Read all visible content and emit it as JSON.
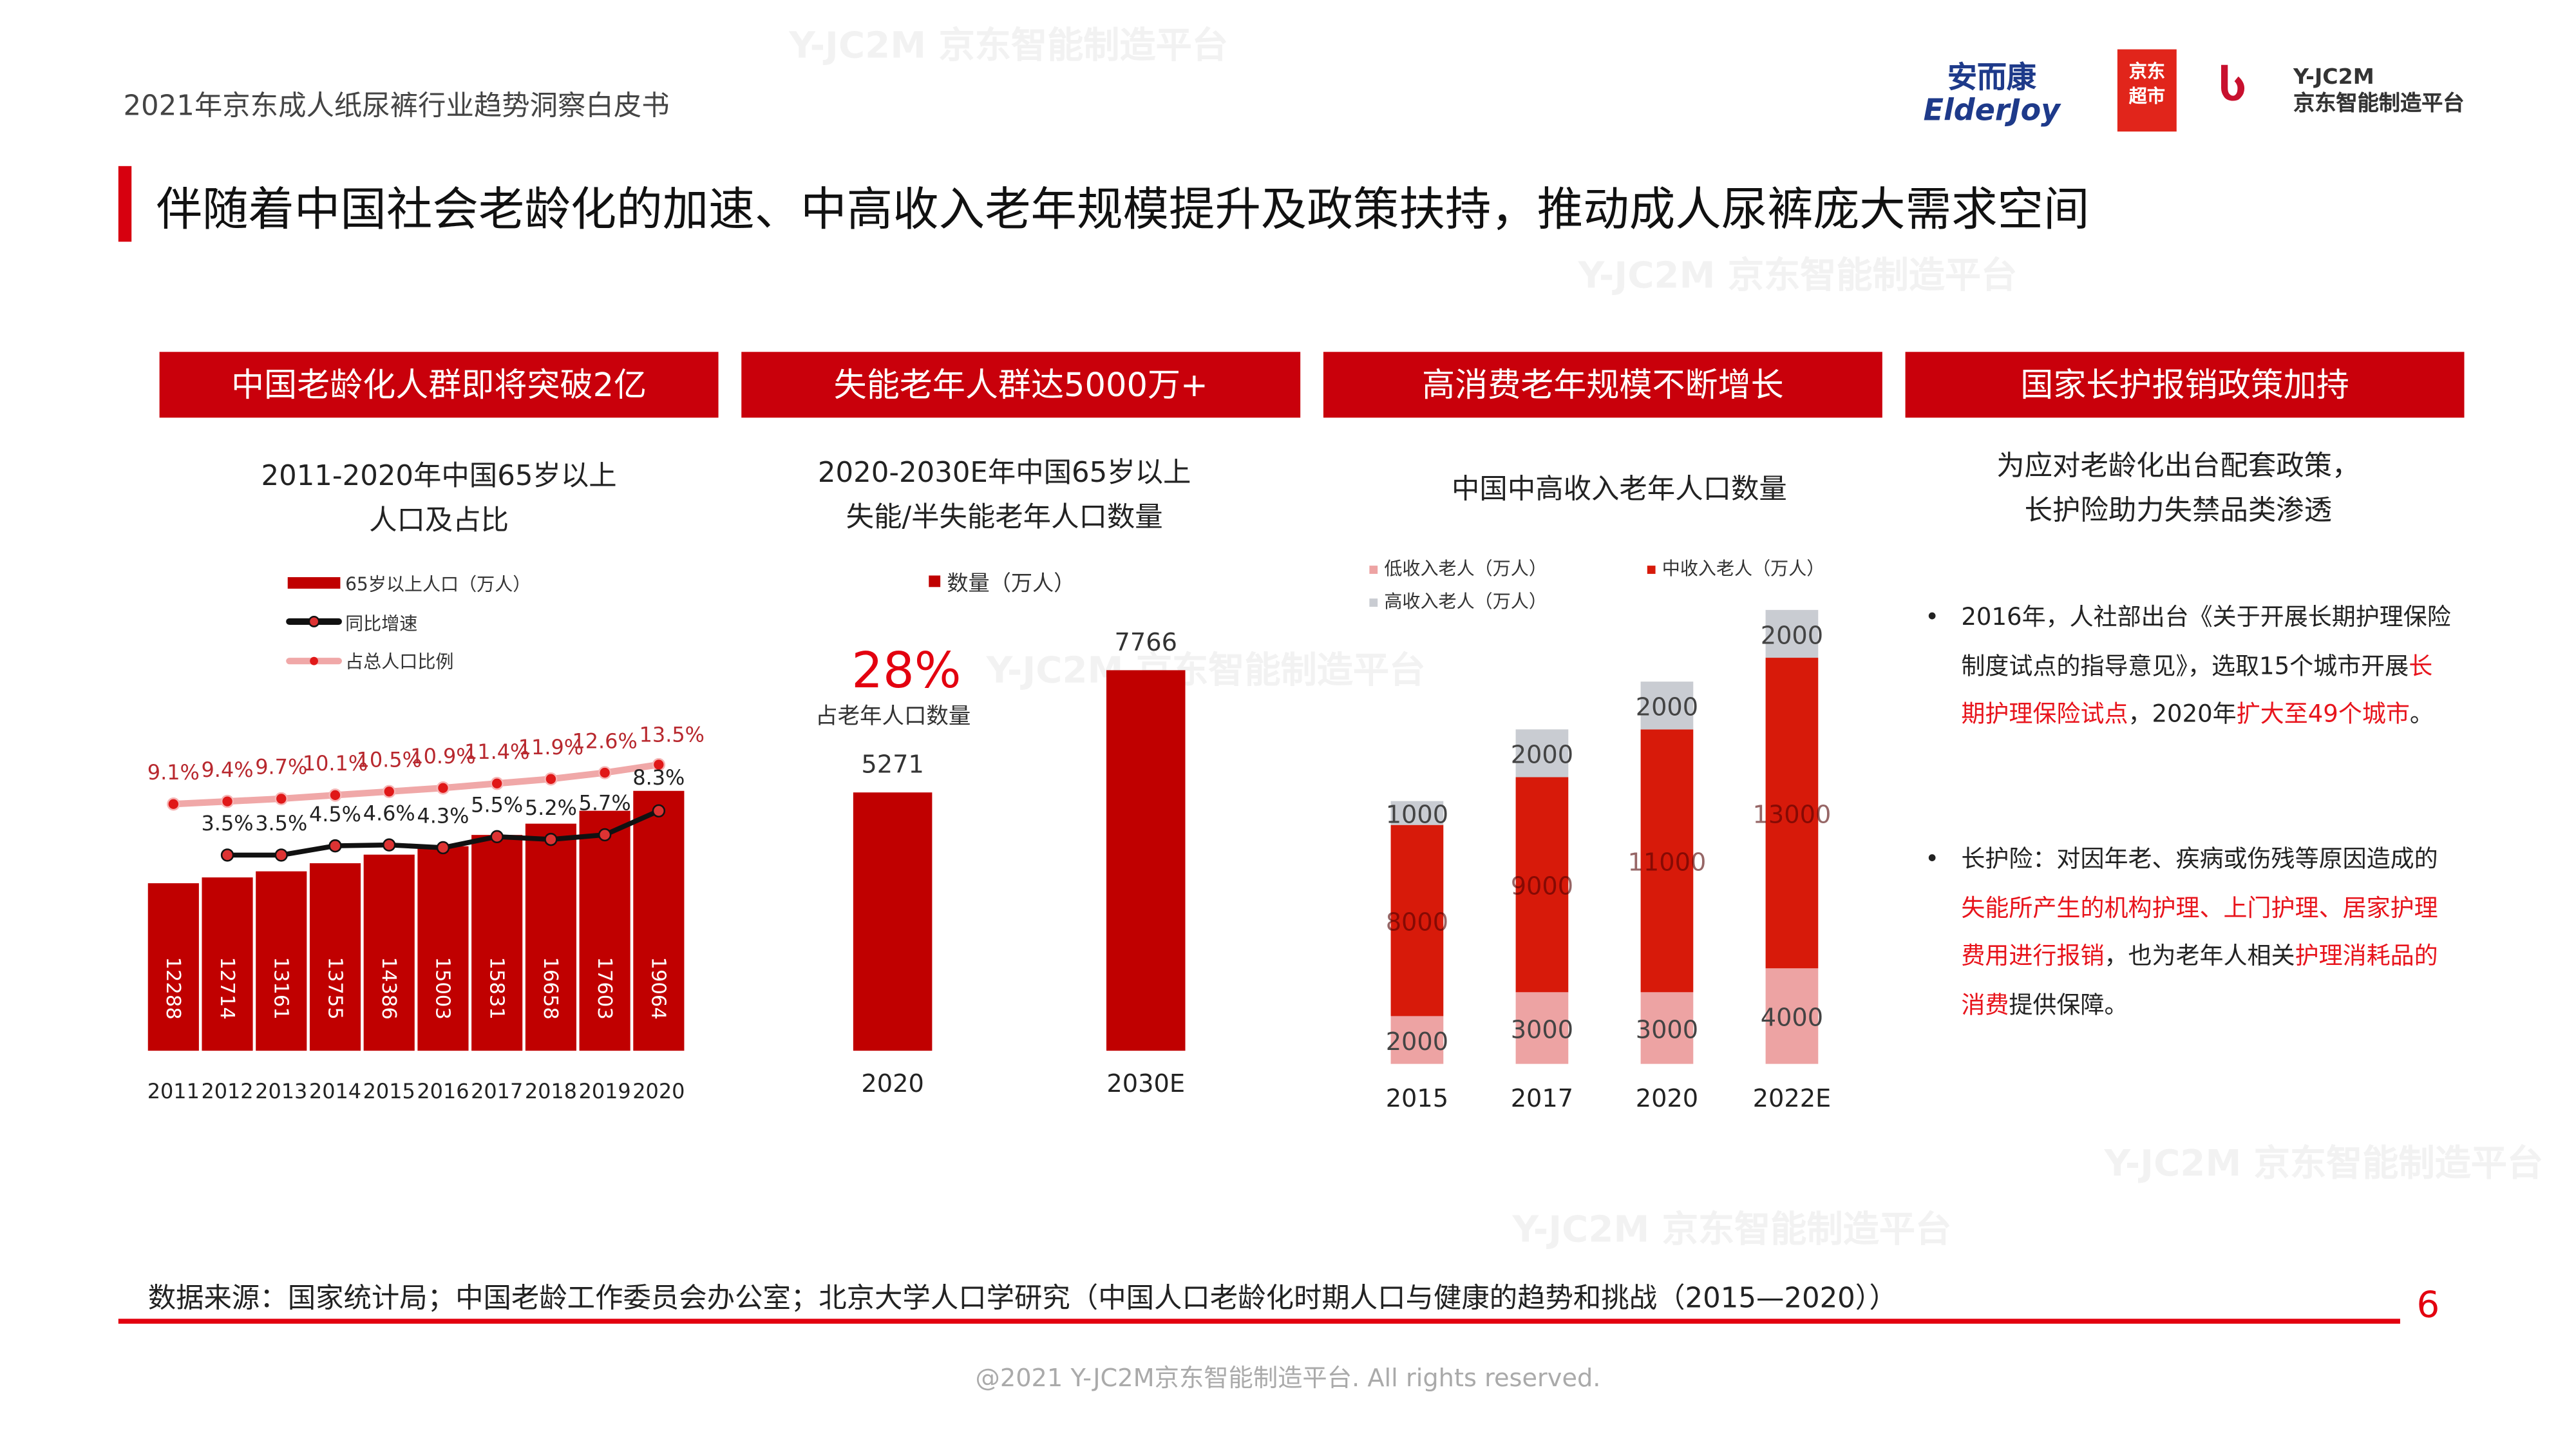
{
  "header": {
    "doc_title": "2021年京东成人纸尿裤行业趋势洞察白皮书",
    "logos": [
      "安而康 ElderJoy",
      "京东超市",
      "Y-JC2M 京东智能制造平台"
    ],
    "headline": "伴随着中国社会老龄化的加速、中高收入老年规模提升及政策扶持，推动成人尿裤庞大需求空间"
  },
  "watermark": "Y-JC2M 京东智能制造平台",
  "panels": [
    {
      "header": "中国老龄化人群即将突破2亿",
      "subtitle_lines": [
        "2011-2020年中国65岁以上",
        "人口及占比"
      ]
    },
    {
      "header": "失能老年人群达5000万+",
      "subtitle_lines": [
        "2020-2030E年中国65岁以上",
        "失能/半失能老年人口数量"
      ]
    },
    {
      "header": "高消费老年规模不断增长",
      "subtitle_lines": [
        "中国中高收入老年人口数量"
      ]
    },
    {
      "header": "国家长护报销政策加持",
      "subtitle_lines": [
        "为应对老龄化出台配套政策，",
        "长护险助力失禁品类渗透"
      ]
    }
  ],
  "policy_bullets": [
    [
      {
        "t": "2016年，人社部出台《关于开展长期护理保险制度试点的指导意见》，选取15个城市开展",
        "r": false
      },
      {
        "t": "长期护理保险试点",
        "r": true
      },
      {
        "t": "，2020年",
        "r": false
      },
      {
        "t": "扩大至49个城市",
        "r": true
      },
      {
        "t": "。",
        "r": false
      }
    ],
    [
      {
        "t": "长护险：对因年老、疾病或伤残等原因造成的",
        "r": false
      },
      {
        "t": "失能所产生的机构护理、上门护理、居家护理费用进行报销",
        "r": true
      },
      {
        "t": "，也为老年人相关",
        "r": false
      },
      {
        "t": "护理消耗品的消费",
        "r": true
      },
      {
        "t": "提供保障。",
        "r": false
      }
    ]
  ],
  "chart_data": [
    {
      "type": "bar",
      "categories": [
        "2011",
        "2012",
        "2013",
        "2014",
        "2015",
        "2016",
        "2017",
        "2018",
        "2019",
        "2020"
      ],
      "series": [
        {
          "name": "65岁以上人口（万人）",
          "kind": "bar",
          "values": [
            12288,
            12714,
            13161,
            13755,
            14386,
            15003,
            15831,
            16658,
            17603,
            19064
          ],
          "color": "#c00000"
        },
        {
          "name": "同比增速",
          "kind": "line",
          "values": [
            null,
            3.5,
            3.5,
            4.5,
            4.6,
            4.3,
            5.5,
            5.2,
            5.7,
            8.3
          ],
          "labels": [
            "",
            "3.5%",
            "3.5%",
            "4.5%",
            "4.6%",
            "4.3%",
            "5.5%",
            "5.2%",
            "5.7%",
            "8.3%"
          ],
          "color": "#111111"
        },
        {
          "name": "占总人口比例",
          "kind": "line",
          "values": [
            9.1,
            9.4,
            9.7,
            10.1,
            10.5,
            10.9,
            11.4,
            11.9,
            12.6,
            13.5
          ],
          "labels": [
            "9.1%",
            "9.4%",
            "9.7%",
            "10.1%",
            "10.5%",
            "10.9%",
            "11.4%",
            "11.9%",
            "12.6%",
            "13.5%"
          ],
          "color": "#f0a8a8"
        }
      ],
      "legend": "top-left"
    },
    {
      "type": "bar",
      "categories": [
        "2020",
        "2030E"
      ],
      "series": [
        {
          "name": "数量（万人）",
          "values": [
            5271,
            7766
          ],
          "color": "#c00000"
        }
      ],
      "annotation": {
        "value": "28%",
        "label": "占老年人口数量"
      },
      "legend": "top"
    },
    {
      "type": "bar",
      "stacked": true,
      "categories": [
        "2015",
        "2017",
        "2020",
        "2022E"
      ],
      "series": [
        {
          "name": "低收入老人（万人）",
          "values": [
            2000,
            3000,
            3000,
            4000
          ],
          "color": "#eda3a3"
        },
        {
          "name": "中收入老人（万人）",
          "values": [
            8000,
            9000,
            11000,
            13000
          ],
          "color": "#d71a0a"
        },
        {
          "name": "高收入老人（万人）",
          "values": [
            1000,
            2000,
            2000,
            2000
          ],
          "color": "#c9ccd2"
        }
      ],
      "legend": "top"
    }
  ],
  "footer": {
    "source": "数据来源：国家统计局；中国老龄工作委员会办公室；北京大学人口学研究（中国人口老龄化时期人口与健康的趋势和挑战（2015—2020））",
    "page": "6",
    "copyright": "@2021 Y-JC2M京东智能制造平台. All rights reserved."
  }
}
